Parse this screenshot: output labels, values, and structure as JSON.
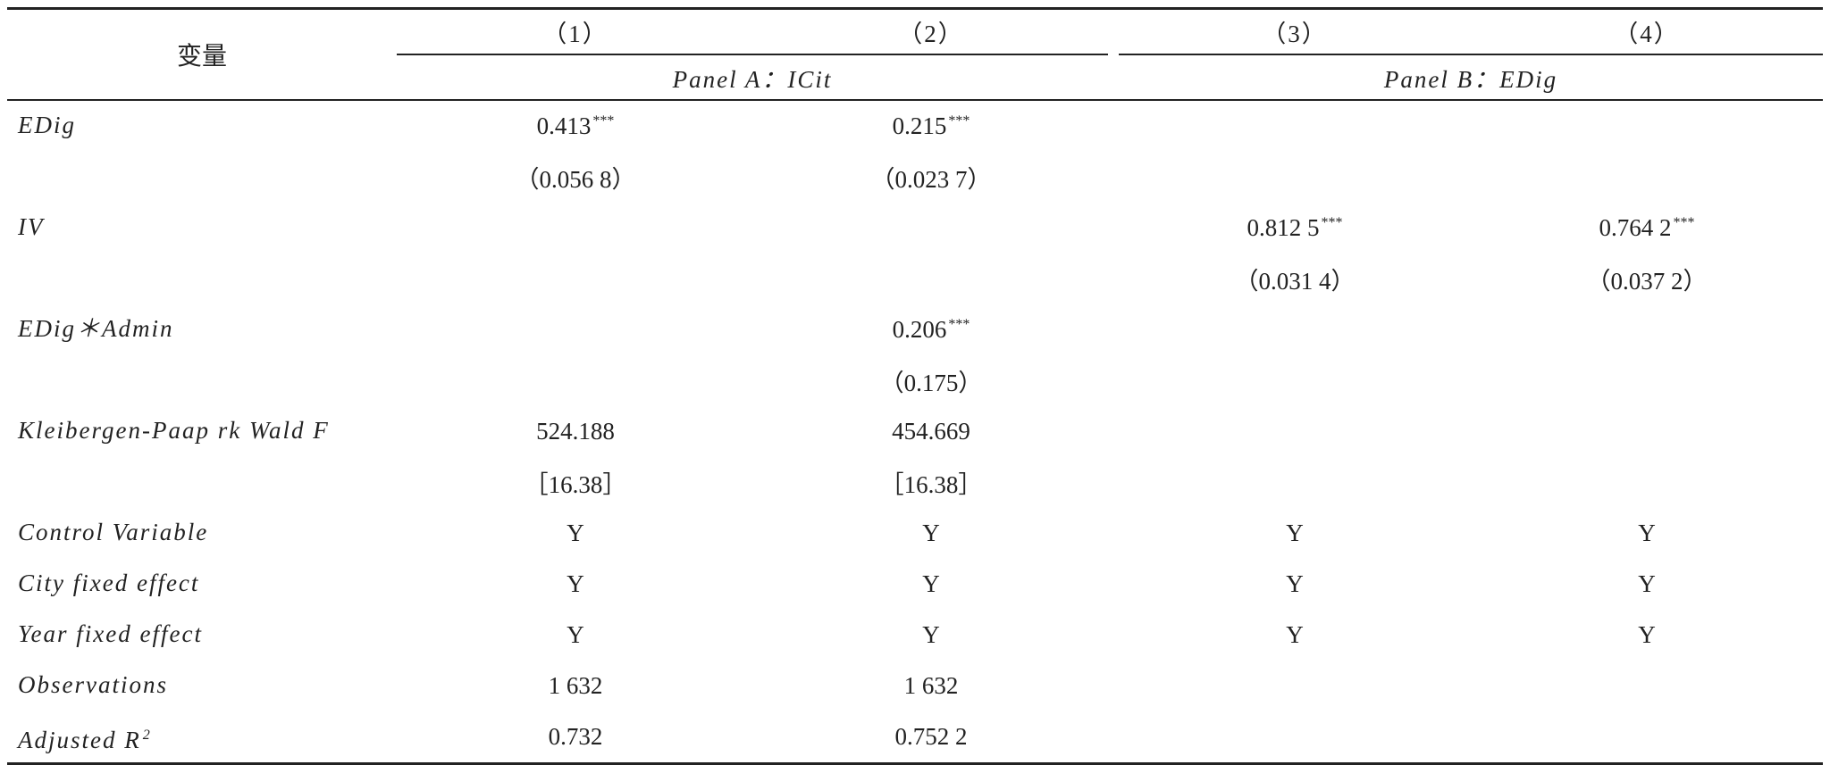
{
  "header": {
    "corner": "变量",
    "columns": [
      "（1）",
      "（2）",
      "（3）",
      "（4）"
    ],
    "panels": [
      "Panel A：ICit",
      "Panel B：EDig"
    ]
  },
  "rows": [
    {
      "label": "EDig",
      "cells": [
        {
          "v": "0.413",
          "sup": "***"
        },
        {
          "v": "0.215",
          "sup": "***"
        },
        null,
        null
      ]
    },
    {
      "label": null,
      "cells": [
        "（0.056 8）",
        "（0.023 7）",
        null,
        null
      ]
    },
    {
      "label": "IV",
      "cells": [
        null,
        null,
        {
          "v": "0.812 5",
          "sup": "***"
        },
        {
          "v": "0.764 2",
          "sup": "***"
        }
      ]
    },
    {
      "label": null,
      "cells": [
        null,
        null,
        "（0.031 4）",
        "（0.037 2）"
      ]
    },
    {
      "label": "EDig＊Admin",
      "cells": [
        null,
        {
          "v": "0.206",
          "sup": "***"
        },
        null,
        null
      ]
    },
    {
      "label": null,
      "cells": [
        null,
        "（0.175）",
        null,
        null
      ]
    },
    {
      "label": "Kleibergen-Paap rk Wald F",
      "cells": [
        "524.188",
        "454.669",
        null,
        null
      ]
    },
    {
      "label": null,
      "cells": [
        "［16.38］",
        "［16.38］",
        null,
        null
      ]
    },
    {
      "label": "Control Variable",
      "cells": [
        "Y",
        "Y",
        "Y",
        "Y"
      ]
    },
    {
      "label": "City fixed effect",
      "cells": [
        "Y",
        "Y",
        "Y",
        "Y"
      ]
    },
    {
      "label": "Year fixed effect",
      "cells": [
        "Y",
        "Y",
        "Y",
        "Y"
      ]
    },
    {
      "label": "Observations",
      "cells": [
        "1 632",
        "1 632",
        null,
        null
      ]
    },
    {
      "label": {
        "v": "Adjusted R",
        "sup": "2"
      },
      "cells": [
        "0.732",
        "0.752 2",
        null,
        null
      ]
    }
  ]
}
